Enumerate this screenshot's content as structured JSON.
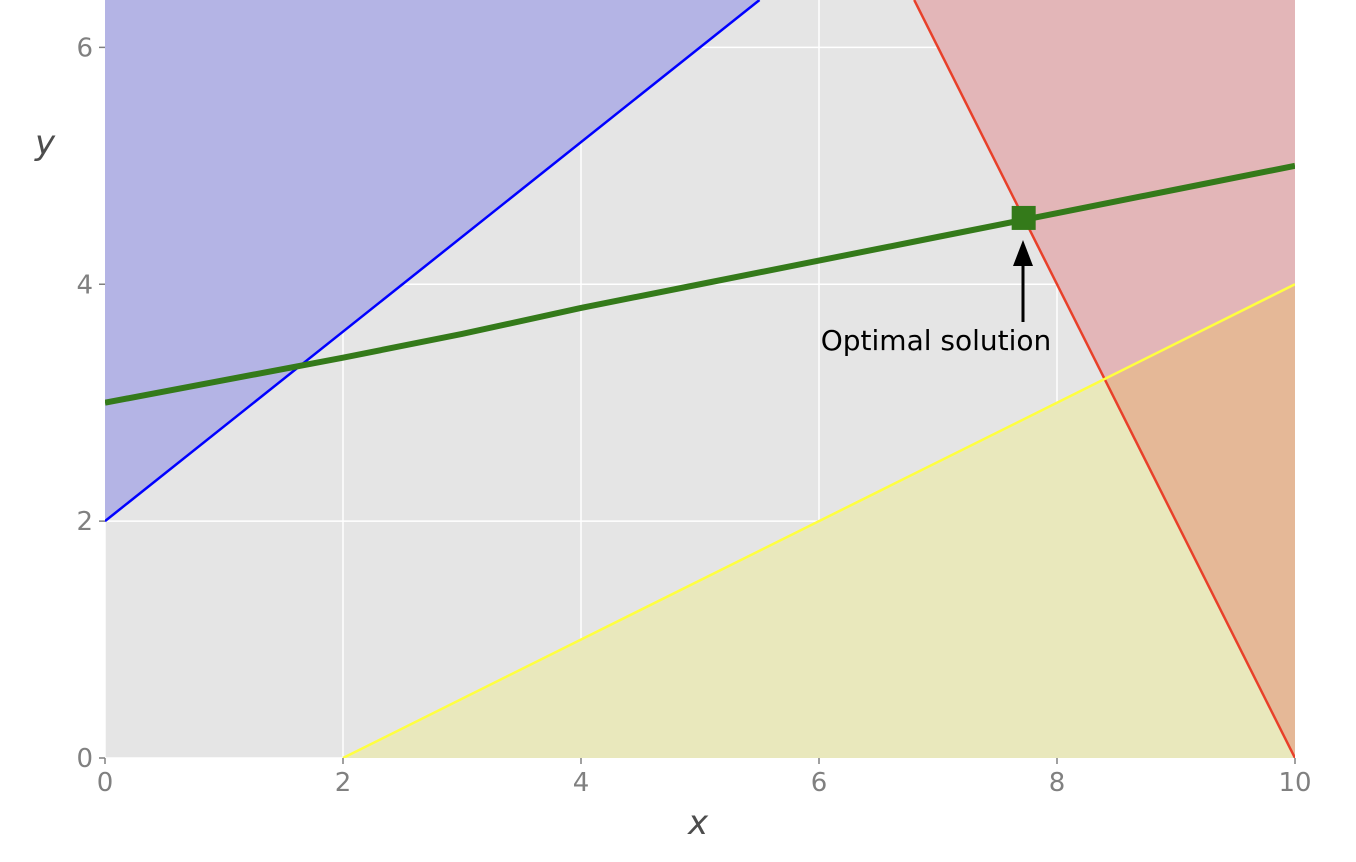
{
  "chart_data": {
    "type": "line",
    "title": "",
    "xlabel": "x",
    "ylabel": "y",
    "xlim": [
      0,
      10
    ],
    "ylim": [
      0,
      6.4
    ],
    "xticks": [
      0,
      2,
      4,
      6,
      8,
      10
    ],
    "yticks": [
      0,
      2,
      4,
      6
    ],
    "grid": true,
    "background_color": "#e5e5e5",
    "regions": [
      {
        "boundary": [
          [
            0,
            2
          ],
          [
            5.5,
            6.4
          ]
        ],
        "fill_side": "above",
        "color": "#0000ff",
        "line_color": "#0000ff",
        "fill_color": "#b4b4e5"
      },
      {
        "boundary": [
          [
            6.8,
            6.4
          ],
          [
            10,
            0
          ]
        ],
        "fill_side": "right",
        "color": "#ff0000",
        "line_color": "#e8402a",
        "fill_color": "#e3b6b8"
      },
      {
        "boundary": [
          [
            2,
            0
          ],
          [
            10,
            4
          ]
        ],
        "fill_side": "below",
        "color": "#ffff00",
        "line_color": "#ffff40",
        "fill_color": "#e9e8bc"
      }
    ],
    "overlap_fill_color": "#e5b897",
    "series": [
      {
        "x": [
          0,
          1,
          2,
          3,
          4,
          5,
          6,
          7,
          8,
          9,
          10
        ],
        "y": [
          3.0,
          3.19,
          3.38,
          3.58,
          3.8,
          4.0,
          4.2,
          4.4,
          4.6,
          4.8,
          5.0
        ],
        "color": "#347a1a"
      }
    ],
    "optimal_point": {
      "x": 7.72,
      "y": 4.56,
      "color": "#347a1a"
    },
    "annotation": {
      "text": "Optimal solution",
      "text_x": 7.72,
      "text_y": 3.5
    }
  }
}
